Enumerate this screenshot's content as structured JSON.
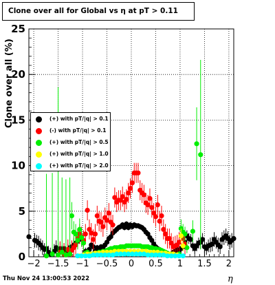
{
  "title": "Clone  over all for Global vs   η at pT > 0.11",
  "footer": "Thu Nov 24 13:00:53 2022",
  "chart_data": {
    "type": "scatter",
    "xlabel": "η",
    "ylabel": "Clone  over all (%)",
    "xlim": [
      -2.1,
      2.1
    ],
    "ylim": [
      0,
      25
    ],
    "x_ticks": [
      -2,
      -1.5,
      -1,
      -0.5,
      0,
      0.5,
      1,
      1.5,
      2
    ],
    "x_tick_labels": [
      "−2",
      "−1.5",
      "−1",
      "−0.5",
      "0",
      "0.5",
      "1",
      "1.5",
      "2"
    ],
    "y_ticks": [
      0,
      5,
      10,
      15,
      20,
      25
    ],
    "y_tick_labels": [
      "0",
      "5",
      "10",
      "15",
      "20",
      "25"
    ],
    "grid": true,
    "legend_position": "left-middle",
    "series": [
      {
        "name": "(+) with pT/|q| > 0.1",
        "color": "#000000",
        "x": [
          -2.1,
          -1.98,
          -1.94,
          -1.9,
          -1.86,
          -1.82,
          -1.78,
          -1.74,
          -1.7,
          -1.66,
          -1.62,
          -1.58,
          -1.54,
          -1.5,
          -1.46,
          -1.42,
          -1.38,
          -1.34,
          -1.3,
          -1.26,
          -1.22,
          -1.18,
          -1.14,
          -1.1,
          -1.06,
          -1.02,
          -0.98,
          -0.94,
          -0.9,
          -0.86,
          -0.82,
          -0.78,
          -0.74,
          -0.7,
          -0.66,
          -0.62,
          -0.58,
          -0.54,
          -0.5,
          -0.46,
          -0.42,
          -0.38,
          -0.34,
          -0.3,
          -0.26,
          -0.22,
          -0.18,
          -0.14,
          -0.1,
          -0.06,
          -0.02,
          0.02,
          0.06,
          0.1,
          0.14,
          0.18,
          0.22,
          0.26,
          0.3,
          0.34,
          0.38,
          0.42,
          0.46,
          0.5,
          0.54,
          0.58,
          0.62,
          0.66,
          0.7,
          0.74,
          0.78,
          0.82,
          0.86,
          0.9,
          0.94,
          0.98,
          1.02,
          1.06,
          1.1,
          1.14,
          1.18,
          1.22,
          1.26,
          1.3,
          1.34,
          1.38,
          1.42,
          1.46,
          1.5,
          1.54,
          1.58,
          1.62,
          1.66,
          1.7,
          1.74,
          1.78,
          1.82,
          1.86,
          1.9,
          1.94,
          1.98,
          2.02,
          2.06,
          2.1
        ],
        "y": [
          2.2,
          1.8,
          1.7,
          1.5,
          1.3,
          1.0,
          0.8,
          0.9,
          0.5,
          0.3,
          0.3,
          0.6,
          1.0,
          0.8,
          0.9,
          0.7,
          0.9,
          0.6,
          0.8,
          1.0,
          1.1,
          1.3,
          1.5,
          1.7,
          1.9,
          2.2,
          1.8,
          0.6,
          0.6,
          0.8,
          1.3,
          1.1,
          0.6,
          1.0,
          0.7,
          1.1,
          1.0,
          1.3,
          1.6,
          2.0,
          2.2,
          2.6,
          2.8,
          3.0,
          3.2,
          3.3,
          3.5,
          3.2,
          3.6,
          3.2,
          3.5,
          3.3,
          3.5,
          3.4,
          3.4,
          3.3,
          3.2,
          3.0,
          2.7,
          2.5,
          2.1,
          1.8,
          1.4,
          1.1,
          0.9,
          0.7,
          0.5,
          0.4,
          0.3,
          0.3,
          0.2,
          0.3,
          0.5,
          0.6,
          0.8,
          0.7,
          0.9,
          1.1,
          1.6,
          2.3,
          2.0,
          1.9,
          1.2,
          0.9,
          1.2,
          1.5,
          1.6,
          1.9,
          1.1,
          0.9,
          1.2,
          1.3,
          1.4,
          1.9,
          1.6,
          1.3,
          1.1,
          1.9,
          2.1,
          2.3,
          2.0,
          1.6,
          1.8,
          2.0
        ],
        "err": [
          0.8,
          0.8,
          0.7,
          0.8,
          0.7,
          0.8,
          0.7,
          0.8,
          0.7,
          0.7,
          0.7,
          0.8,
          0.8,
          0.7,
          0.7,
          0.6,
          0.6,
          0.6,
          0.6,
          0.6,
          0.6,
          0.6,
          0.6,
          0.6,
          0.5,
          0.5,
          0.5,
          0.4,
          0.4,
          0.4,
          0.4,
          0.4,
          0.4,
          0.3,
          0.3,
          0.3,
          0.3,
          0.3,
          0.3,
          0.3,
          0.3,
          0.3,
          0.3,
          0.3,
          0.3,
          0.3,
          0.3,
          0.3,
          0.3,
          0.3,
          0.3,
          0.3,
          0.3,
          0.3,
          0.3,
          0.3,
          0.3,
          0.3,
          0.3,
          0.3,
          0.3,
          0.3,
          0.3,
          0.3,
          0.3,
          0.3,
          0.3,
          0.3,
          0.3,
          0.3,
          0.3,
          0.3,
          0.3,
          0.4,
          0.4,
          0.4,
          0.5,
          0.5,
          0.5,
          0.6,
          0.6,
          0.6,
          0.6,
          0.6,
          0.6,
          0.6,
          0.7,
          0.7,
          0.7,
          0.7,
          0.7,
          0.8,
          0.8,
          0.8,
          0.7,
          0.8,
          0.8,
          0.8,
          0.8,
          0.8,
          0.8,
          0.8,
          0.8,
          0.8
        ]
      },
      {
        "name": "(-) with pT/|q| > 0.1",
        "color": "#ff0000",
        "x": [
          -1.46,
          -1.38,
          -1.3,
          -1.22,
          -1.18,
          -1.14,
          -1.1,
          -1.06,
          -1.02,
          -0.98,
          -0.94,
          -0.9,
          -0.86,
          -0.82,
          -0.78,
          -0.74,
          -0.7,
          -0.66,
          -0.62,
          -0.58,
          -0.54,
          -0.5,
          -0.46,
          -0.42,
          -0.38,
          -0.34,
          -0.3,
          -0.26,
          -0.22,
          -0.18,
          -0.14,
          -0.1,
          -0.06,
          -0.02,
          0.02,
          0.06,
          0.1,
          0.14,
          0.18,
          0.22,
          0.26,
          0.3,
          0.34,
          0.38,
          0.42,
          0.46,
          0.5,
          0.54,
          0.58,
          0.62,
          0.66,
          0.7,
          0.74,
          0.78,
          0.82,
          0.86,
          0.9,
          0.94,
          0.98,
          1.02,
          1.06,
          1.1
        ],
        "y": [
          0.5,
          0.3,
          0.8,
          0.7,
          1.0,
          1.3,
          2.0,
          2.5,
          2.2,
          1.8,
          2.5,
          5.1,
          3.0,
          2.6,
          1.9,
          2.5,
          4.5,
          3.9,
          3.8,
          3.3,
          4.3,
          4.0,
          4.8,
          3.8,
          3.5,
          6.5,
          6.0,
          6.2,
          6.2,
          6.6,
          6.0,
          6.3,
          7.0,
          7.5,
          8.1,
          9.2,
          9.2,
          9.2,
          7.3,
          7.0,
          6.8,
          5.9,
          5.7,
          6.4,
          5.4,
          4.8,
          4.4,
          5.7,
          3.9,
          4.5,
          3.0,
          2.5,
          2.0,
          2.0,
          1.5,
          1.1,
          1.2,
          1.3,
          1.6,
          2.3,
          2.0,
          1.4
        ],
        "err": [
          1.2,
          1.2,
          1.1,
          1.1,
          1.1,
          1.1,
          1.1,
          1.1,
          1.1,
          1.1,
          1.1,
          1.1,
          1.1,
          1.1,
          1.1,
          1.1,
          1.1,
          1.1,
          1.1,
          1.1,
          1.1,
          1.1,
          1.1,
          1.1,
          1.1,
          1.1,
          1.1,
          1.1,
          1.1,
          1.1,
          1.1,
          1.1,
          1.1,
          1.1,
          1.1,
          1.1,
          1.1,
          1.1,
          1.1,
          1.1,
          1.1,
          1.1,
          1.1,
          1.1,
          1.1,
          1.1,
          1.1,
          1.1,
          1.1,
          1.1,
          1.1,
          1.1,
          1.1,
          1.1,
          1.1,
          1.1,
          1.1,
          1.1,
          1.1,
          1.1,
          1.1,
          1.1
        ]
      },
      {
        "name": "(+) with pT/|q| > 0.5",
        "color": "#00ee00",
        "x": [
          -1.74,
          -1.62,
          -1.5,
          -1.42,
          -1.34,
          -1.26,
          -1.22,
          -1.18,
          -1.14,
          -1.1,
          -1.06,
          -1.02,
          -0.98,
          -0.94,
          -0.9,
          -0.86,
          -0.82,
          -0.78,
          -0.74,
          -0.7,
          -0.66,
          -0.62,
          -0.58,
          -0.54,
          -0.5,
          -0.46,
          -0.42,
          -0.38,
          -0.34,
          -0.3,
          -0.26,
          -0.22,
          -0.18,
          -0.14,
          -0.1,
          -0.06,
          -0.02,
          0.02,
          0.06,
          0.1,
          0.14,
          0.18,
          0.22,
          0.26,
          0.3,
          0.34,
          0.38,
          0.42,
          0.46,
          0.5,
          0.54,
          0.58,
          0.62,
          0.66,
          0.7,
          0.74,
          0.78,
          0.82,
          0.86,
          0.9,
          0.94,
          0.98,
          1.02,
          1.06,
          1.1,
          1.14,
          1.26,
          1.34,
          1.42
        ],
        "y": [
          0.1,
          0.3,
          0.2,
          0.5,
          0.2,
          0.3,
          4.5,
          2.7,
          2.5,
          1.8,
          3.0,
          2.1,
          1.5,
          0.4,
          0.5,
          0.3,
          0.2,
          0.3,
          0.3,
          0.4,
          0.5,
          0.5,
          0.6,
          0.6,
          0.7,
          0.8,
          0.9,
          0.9,
          1.0,
          1.0,
          1.0,
          1.1,
          1.1,
          1.1,
          1.2,
          1.2,
          1.2,
          1.2,
          1.2,
          1.2,
          1.2,
          1.2,
          1.1,
          1.1,
          1.1,
          1.1,
          1.0,
          1.0,
          0.9,
          0.9,
          0.8,
          0.8,
          0.7,
          0.6,
          0.5,
          0.4,
          0.3,
          0.3,
          0.2,
          0.2,
          0.2,
          0.3,
          3.1,
          2.7,
          2.5,
          1.0,
          2.8,
          12.4,
          11.2
        ],
        "err": [
          9.0,
          8.9,
          18.4,
          8.2,
          8.3,
          8.4,
          1.5,
          1.2,
          1.1,
          1.0,
          1.2,
          1.0,
          0.8,
          0.3,
          0.3,
          0.3,
          0.2,
          0.2,
          0.2,
          0.2,
          0.2,
          0.2,
          0.2,
          0.2,
          0.2,
          0.2,
          0.2,
          0.2,
          0.2,
          0.2,
          0.2,
          0.2,
          0.2,
          0.2,
          0.2,
          0.2,
          0.2,
          0.2,
          0.2,
          0.2,
          0.2,
          0.2,
          0.2,
          0.2,
          0.2,
          0.2,
          0.2,
          0.2,
          0.2,
          0.2,
          0.2,
          0.2,
          0.2,
          0.2,
          0.2,
          0.2,
          0.2,
          0.2,
          0.2,
          0.3,
          0.3,
          0.3,
          1.0,
          0.9,
          0.8,
          0.6,
          1.2,
          4.0,
          10.4
        ]
      },
      {
        "name": "(+) with pT/|q| > 1.0",
        "color": "#ffff00",
        "x": [
          -1.06,
          -0.98,
          -0.9,
          -0.82,
          -0.74,
          -0.66,
          -0.58,
          -0.5,
          -0.42,
          -0.34,
          -0.26,
          -0.18,
          -0.1,
          -0.02,
          0.06,
          0.14,
          0.22,
          0.3,
          0.38,
          0.46,
          0.54,
          0.62,
          0.7,
          0.78,
          0.86,
          0.94,
          1.02,
          1.06
        ],
        "y": [
          0.1,
          0.2,
          0.3,
          0.3,
          0.4,
          0.4,
          0.5,
          0.5,
          0.5,
          0.6,
          0.6,
          0.6,
          0.6,
          0.6,
          0.6,
          0.6,
          0.6,
          0.6,
          0.5,
          0.5,
          0.5,
          0.4,
          0.4,
          0.3,
          0.3,
          0.2,
          2.3,
          1.2
        ],
        "err": [
          0.2,
          0.2,
          0.2,
          0.2,
          0.2,
          0.2,
          0.2,
          0.2,
          0.2,
          0.2,
          0.2,
          0.2,
          0.2,
          0.2,
          0.2,
          0.2,
          0.2,
          0.2,
          0.2,
          0.2,
          0.2,
          0.2,
          0.2,
          0.2,
          0.2,
          0.2,
          0.8,
          0.6
        ]
      },
      {
        "name": "(+) with pT/|q| > 2.0",
        "color": "#00ffff",
        "x": [
          -1.1,
          -1.02,
          -0.94,
          -0.86,
          -0.78,
          -0.7,
          -0.62,
          -0.54,
          -0.46,
          -0.38,
          -0.3,
          -0.22,
          -0.14,
          -0.06,
          0.02,
          0.1,
          0.18,
          0.26,
          0.34,
          0.42,
          0.5,
          0.58,
          0.66,
          0.74,
          0.82,
          0.9,
          0.98,
          1.06
        ],
        "y": [
          0.1,
          0.1,
          0.1,
          0.1,
          0.2,
          0.2,
          0.2,
          0.2,
          0.2,
          0.2,
          0.3,
          0.3,
          0.3,
          0.3,
          0.3,
          0.3,
          0.3,
          0.3,
          0.2,
          0.2,
          0.2,
          0.2,
          0.2,
          0.1,
          0.1,
          0.1,
          0.1,
          0.1
        ],
        "err": [
          0.1,
          0.1,
          0.1,
          0.1,
          0.1,
          0.1,
          0.1,
          0.1,
          0.1,
          0.1,
          0.1,
          0.1,
          0.1,
          0.1,
          0.1,
          0.1,
          0.1,
          0.1,
          0.1,
          0.1,
          0.1,
          0.1,
          0.1,
          0.1,
          0.1,
          0.1,
          0.1,
          0.1
        ]
      }
    ]
  }
}
